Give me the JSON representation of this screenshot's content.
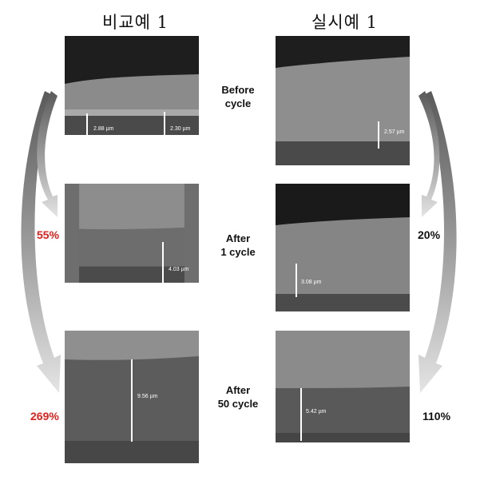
{
  "columns": {
    "left_title": "비교예 1",
    "right_title": "실시예 1"
  },
  "stages": [
    {
      "label_line1": "Before",
      "label_line2": "cycle"
    },
    {
      "label_line1": "After",
      "label_line2": "1 cycle"
    },
    {
      "label_line1": "After",
      "label_line2": "50 cycle"
    }
  ],
  "left_panels": [
    {
      "measurements": [
        "2.88 µm",
        "2.30 µm"
      ]
    },
    {
      "measurements": [
        "4.03 µm"
      ]
    },
    {
      "measurements": [
        "9.56 µm"
      ]
    }
  ],
  "right_panels": [
    {
      "measurements": [
        "2.57 µm"
      ]
    },
    {
      "measurements": [
        "3.08 µm"
      ]
    },
    {
      "measurements": [
        "5.42 µm"
      ]
    }
  ],
  "left_changes": [
    "55%",
    "269%"
  ],
  "right_changes": [
    "20%",
    "110%"
  ],
  "colors": {
    "left_change": "#e0201b",
    "right_change": "#111111",
    "arrow_fill": "#b4b4b4"
  }
}
